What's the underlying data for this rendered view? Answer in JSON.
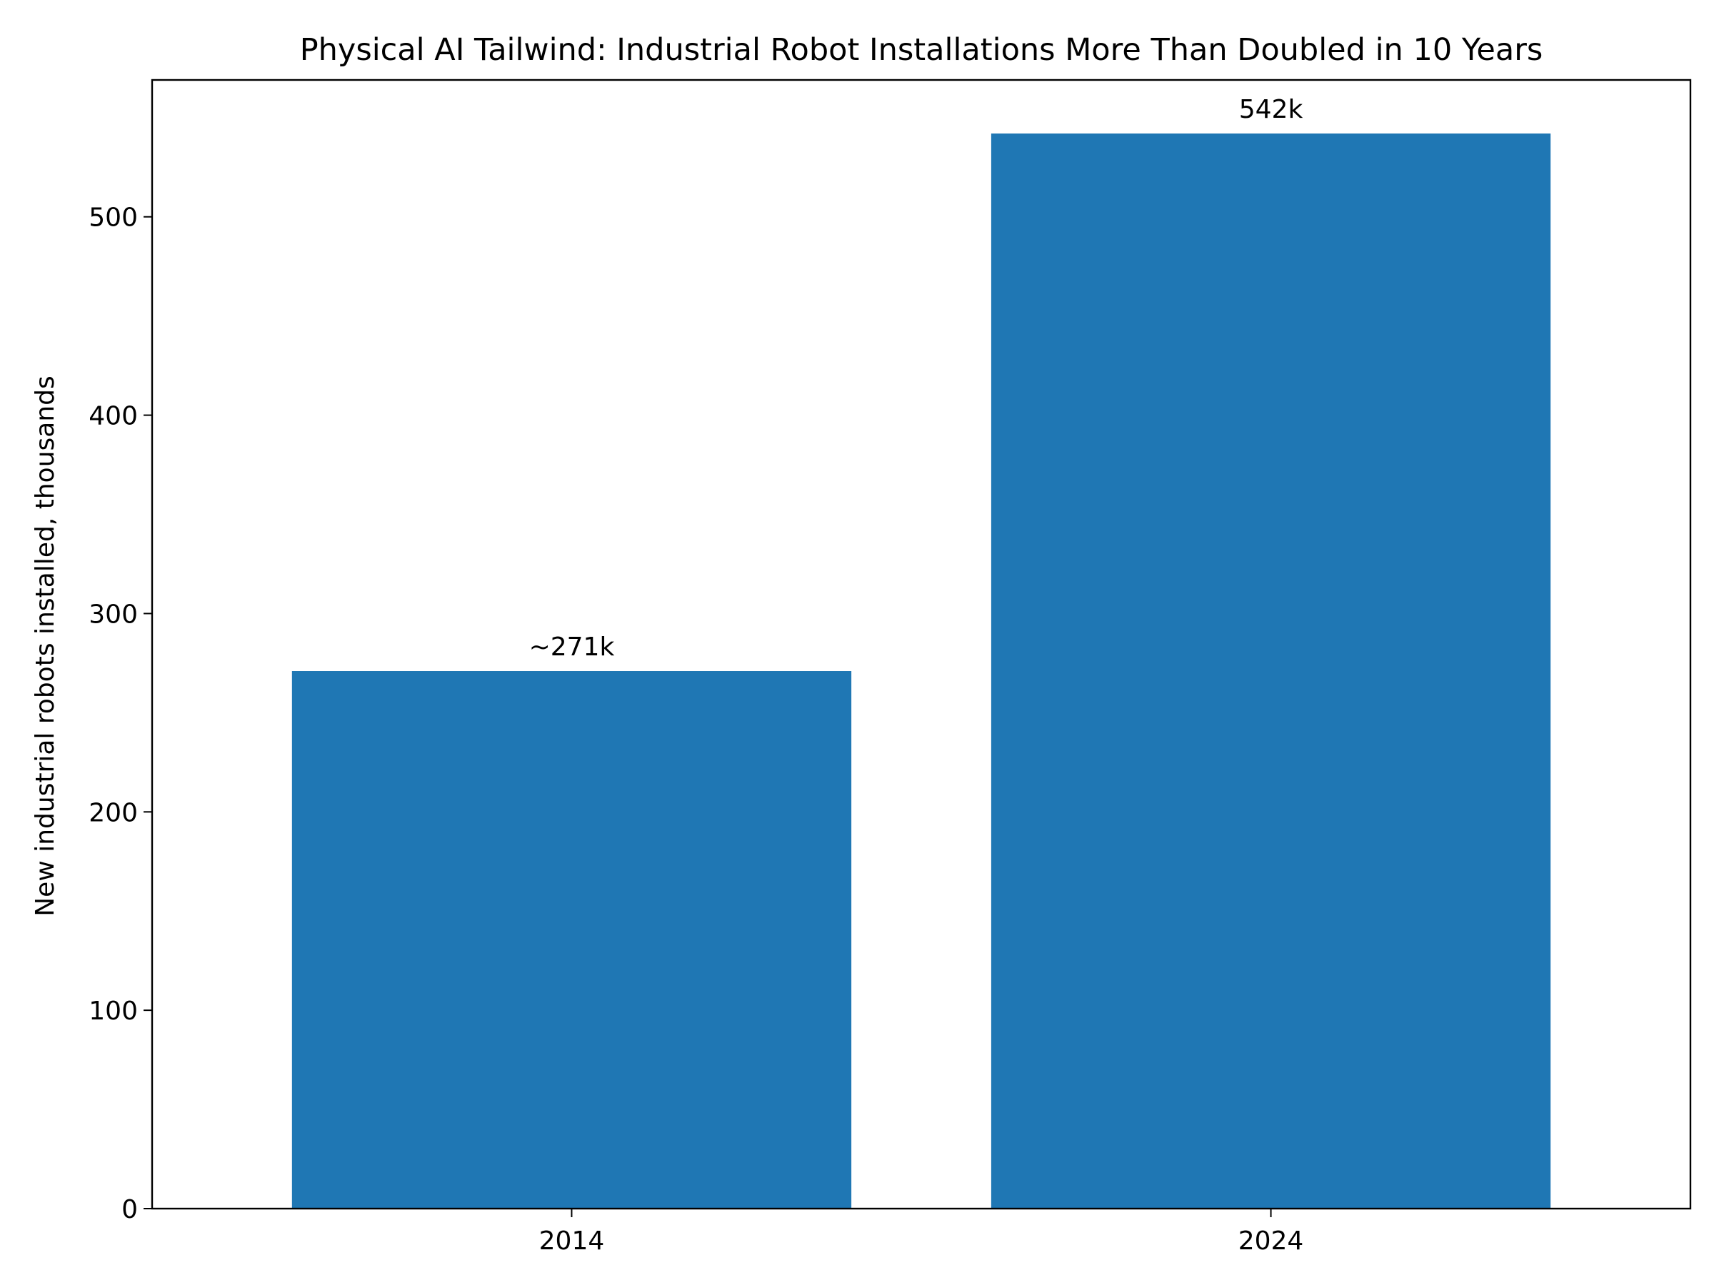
{
  "chart_data": {
    "type": "bar",
    "title": "Physical AI Tailwind: Industrial Robot Installations More Than Doubled in 10 Years",
    "xlabel": "",
    "ylabel": "New industrial robots installed, thousands",
    "categories": [
      "2014",
      "2024"
    ],
    "values": [
      271,
      542
    ],
    "data_labels": [
      "~271k",
      "542k"
    ],
    "ylim": [
      0,
      569
    ],
    "yticks": [
      0,
      100,
      200,
      300,
      400,
      500
    ],
    "bar_color": "#1f77b4",
    "grid": false,
    "legend": "none"
  }
}
